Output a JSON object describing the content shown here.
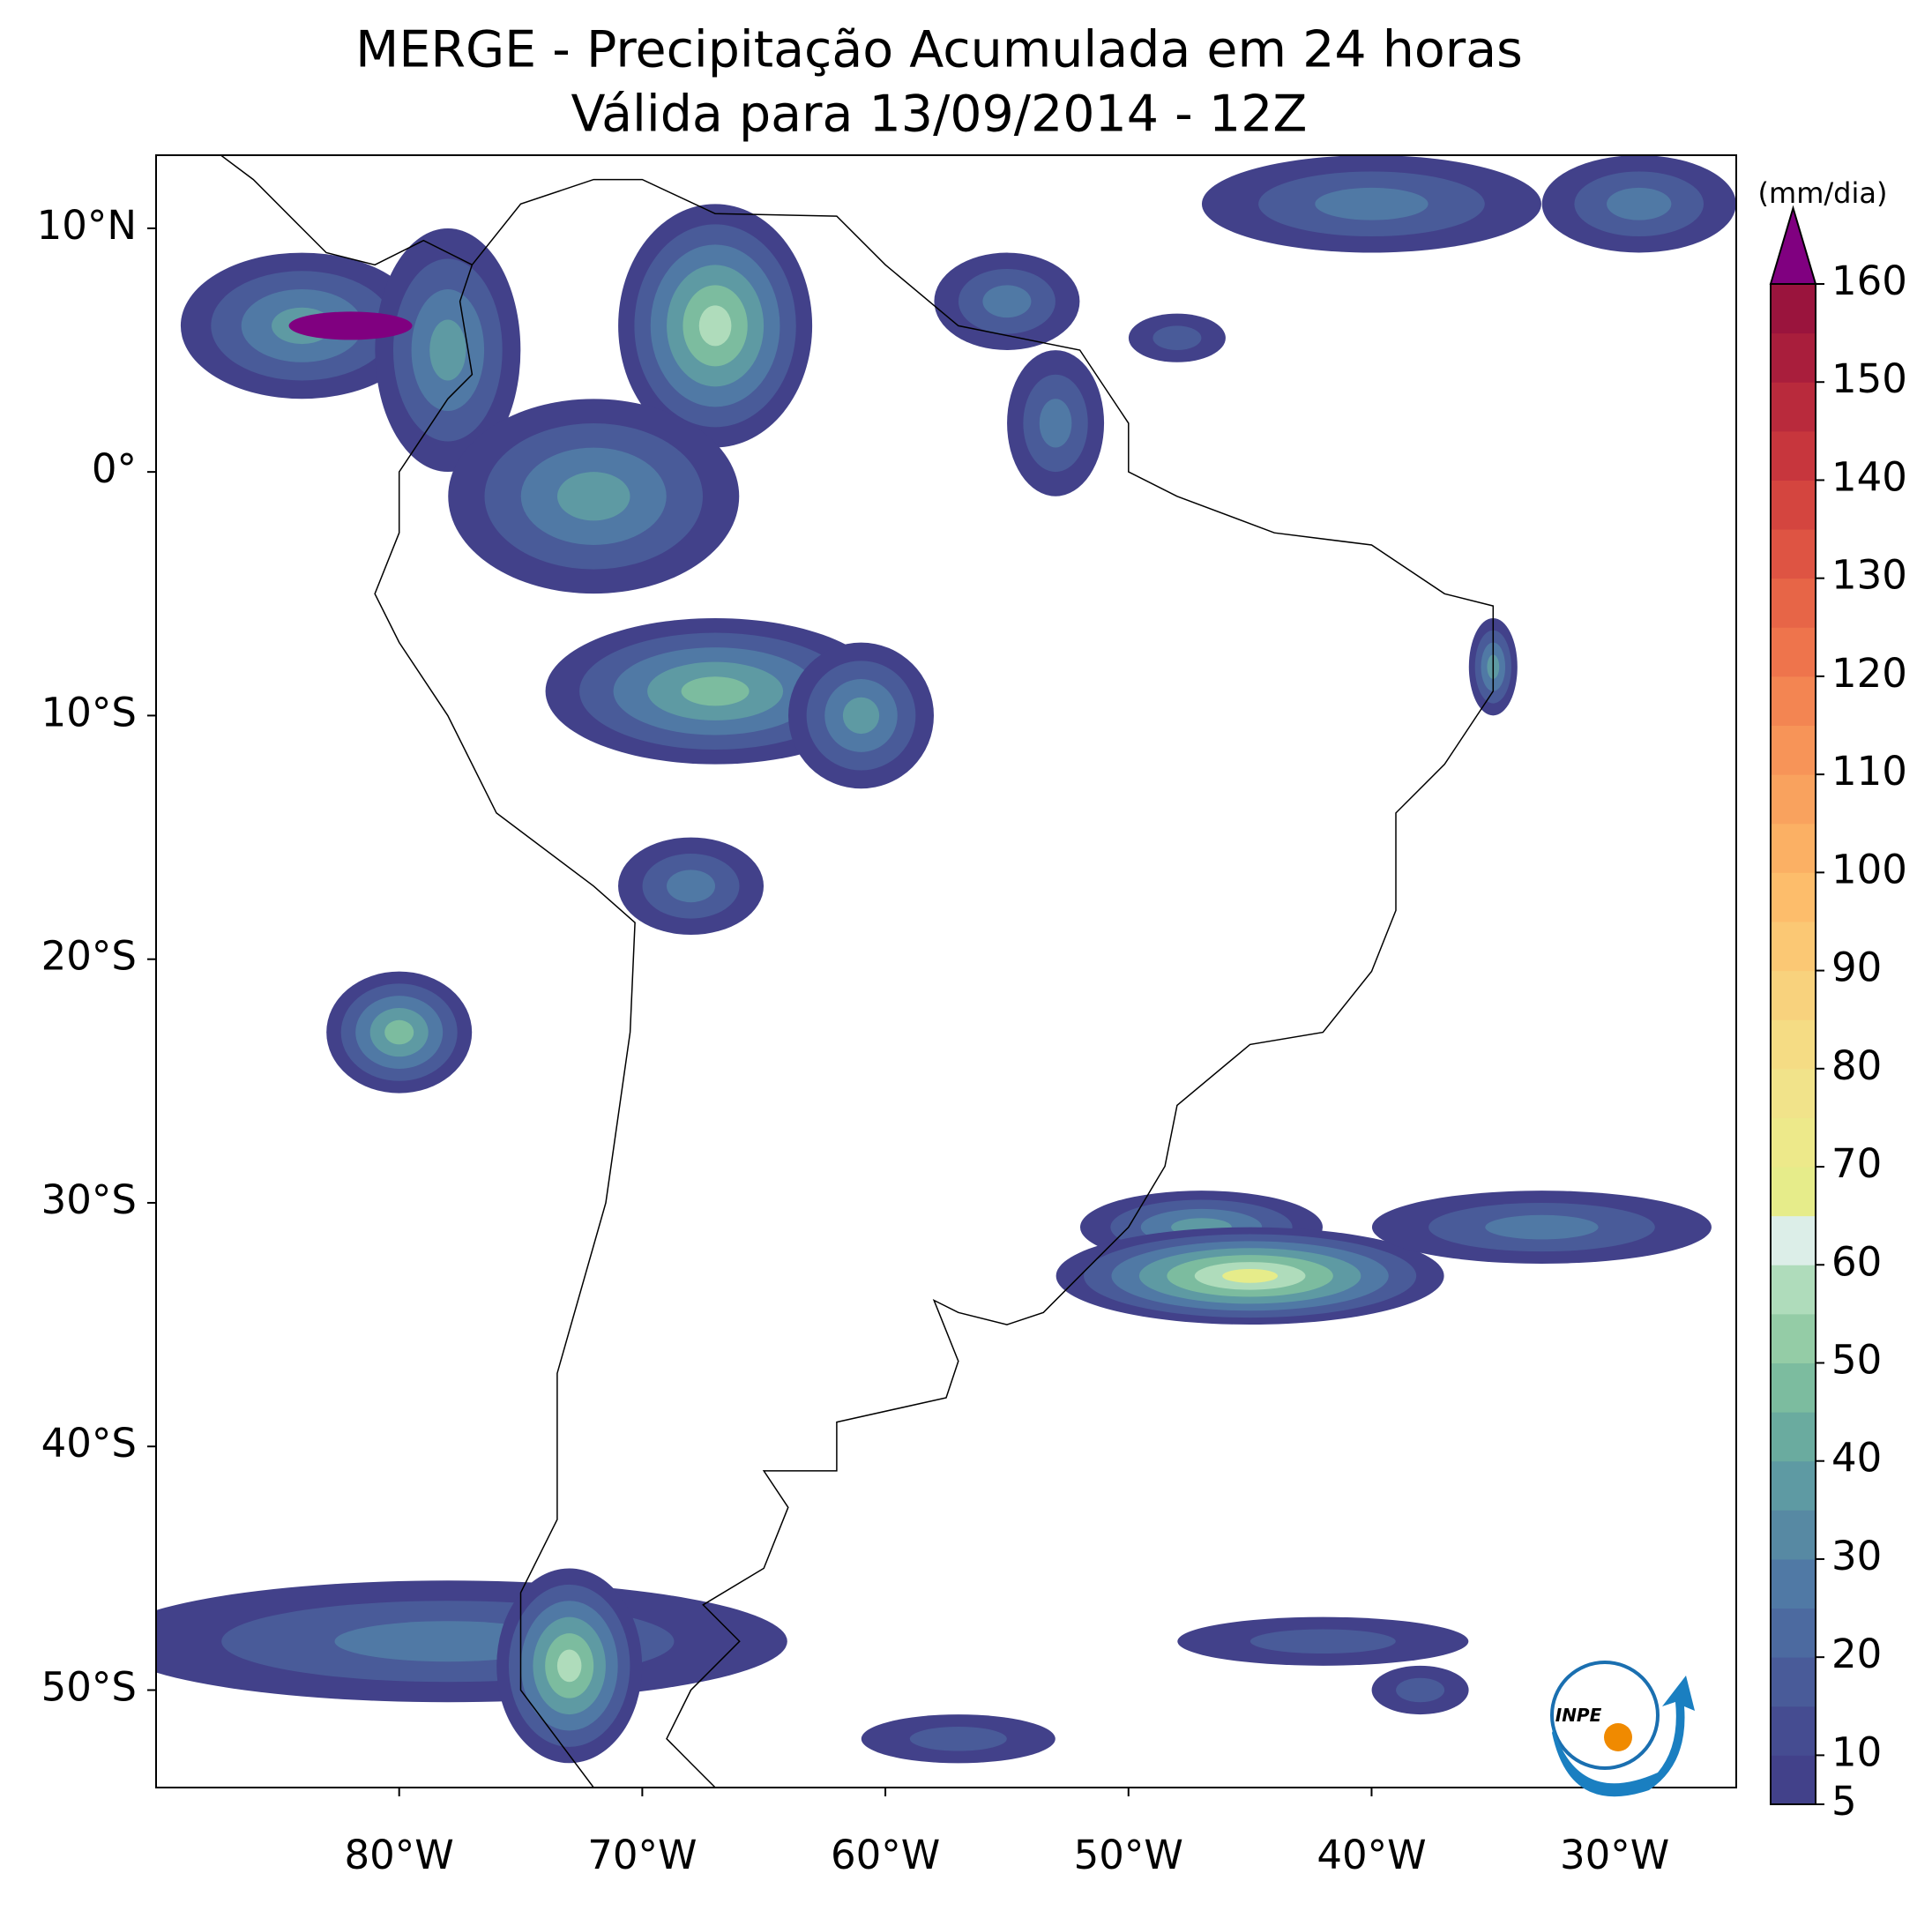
{
  "chart_data": {
    "type": "map",
    "title": "MERGE - Precipitação Acumulada em 24 horas",
    "subtitle": "Válida para 13/09/2014 - 12Z",
    "xlim": [
      -90,
      -25
    ],
    "ylim": [
      -54,
      13
    ],
    "xticks": [
      {
        "value": -80,
        "label": "80°W"
      },
      {
        "value": -70,
        "label": "70°W"
      },
      {
        "value": -60,
        "label": "60°W"
      },
      {
        "value": -50,
        "label": "50°W"
      },
      {
        "value": -40,
        "label": "40°W"
      },
      {
        "value": -30,
        "label": "30°W"
      }
    ],
    "yticks": [
      {
        "value": 10,
        "label": "10°N"
      },
      {
        "value": 0,
        "label": "0°"
      },
      {
        "value": -10,
        "label": "10°S"
      },
      {
        "value": -20,
        "label": "20°S"
      },
      {
        "value": -30,
        "label": "30°S"
      },
      {
        "value": -40,
        "label": "40°S"
      },
      {
        "value": -50,
        "label": "50°S"
      }
    ],
    "colorbar": {
      "label": "(mm/dia)",
      "lim": [
        5,
        160
      ],
      "step": 5,
      "ticks": [
        5,
        10,
        20,
        30,
        40,
        50,
        60,
        70,
        80,
        90,
        100,
        110,
        120,
        130,
        140,
        150,
        160
      ],
      "colors": [
        "#42418a",
        "#454c91",
        "#495b99",
        "#4c6aa0",
        "#5079a5",
        "#5789a3",
        "#5e9aa3",
        "#6aab9f",
        "#7cbc9f",
        "#94cca6",
        "#afdcbb",
        "#dceee8",
        "#e6ec8a",
        "#ede98a",
        "#f1e38a",
        "#f5dc84",
        "#f8d27d",
        "#fbc874",
        "#fdbd6b",
        "#fbb064",
        "#f9a25e",
        "#f79458",
        "#f38552",
        "#ee744c",
        "#e76547",
        "#de5443",
        "#d4453f",
        "#c7363d",
        "#b92a3c",
        "#a91e3c",
        "#9a143d"
      ],
      "extend_color": "#800080"
    },
    "logo": "INPE"
  }
}
